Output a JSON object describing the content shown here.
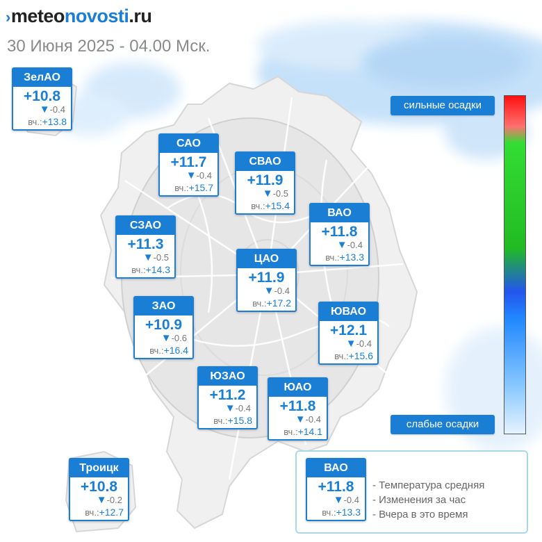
{
  "header": {
    "logo_prefix": "meteo",
    "logo_main": "novosti",
    "logo_suffix": ".ru",
    "datetime": "30 Июня 2025 - 04.00 Мск."
  },
  "yesterday_prefix": "вч.:",
  "districts": [
    {
      "name": "ЗелАО",
      "temp": "+10.8",
      "change": "-0.4",
      "yesterday": "+13.8"
    },
    {
      "name": "САО",
      "temp": "+11.7",
      "change": "-0.4",
      "yesterday": "+15.7"
    },
    {
      "name": "СВАО",
      "temp": "+11.9",
      "change": "-0.5",
      "yesterday": "+15.4"
    },
    {
      "name": "ВАО",
      "temp": "+11.8",
      "change": "-0.4",
      "yesterday": "+13.3"
    },
    {
      "name": "СЗАО",
      "temp": "+11.3",
      "change": "-0.5",
      "yesterday": "+14.3"
    },
    {
      "name": "ЦАО",
      "temp": "+11.9",
      "change": "-0.4",
      "yesterday": "+17.2"
    },
    {
      "name": "ЗАО",
      "temp": "+10.9",
      "change": "-0.6",
      "yesterday": "+16.4"
    },
    {
      "name": "ЮВАО",
      "temp": "+12.1",
      "change": "-0.4",
      "yesterday": "+15.6"
    },
    {
      "name": "ЮЗАО",
      "temp": "+11.2",
      "change": "-0.4",
      "yesterday": "+15.8"
    },
    {
      "name": "ЮАО",
      "temp": "+11.8",
      "change": "-0.4",
      "yesterday": "+14.1"
    },
    {
      "name": "Троицк",
      "temp": "+10.8",
      "change": "-0.2",
      "yesterday": "+12.7"
    }
  ],
  "precip_scale": {
    "top_label": "сильные осадки",
    "bottom_label": "слабые осадки"
  },
  "legend": {
    "sample": {
      "name": "ВАО",
      "temp": "+11.8",
      "change": "-0.4",
      "yesterday": "+13.3"
    },
    "items": [
      "- Температура средняя",
      "- Изменения за час",
      "- Вчера в это время"
    ]
  },
  "colors": {
    "accent": "#1a7fd4",
    "muted_text": "#777777",
    "precip_light": "#cfe6fb",
    "map_fill": "#ececec"
  }
}
